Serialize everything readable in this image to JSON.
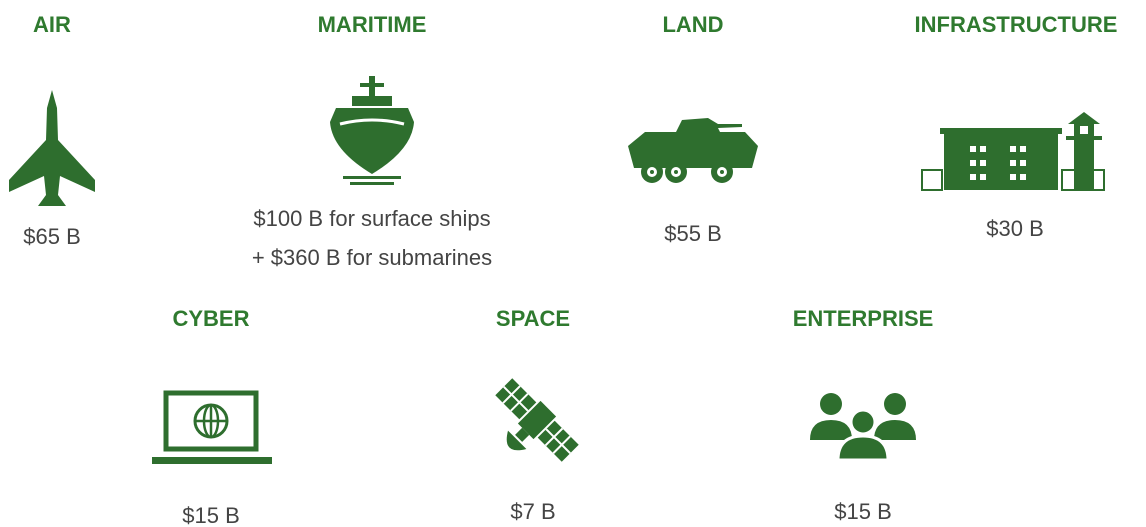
{
  "items": [
    {
      "title": "AIR",
      "amount": [
        "$65 B"
      ]
    },
    {
      "title": "MARITIME",
      "amount": [
        "$100 B for surface ships",
        "+ $360 B for submarines"
      ]
    },
    {
      "title": "LAND",
      "amount": [
        "$55 B"
      ]
    },
    {
      "title": "INFRASTRUCTURE",
      "amount": [
        "$30 B"
      ]
    },
    {
      "title": "CYBER",
      "amount": [
        "$15 B"
      ]
    },
    {
      "title": "SPACE",
      "amount": [
        "$7 B"
      ]
    },
    {
      "title": "ENTERPRISE",
      "amount": [
        "$15 B"
      ]
    }
  ]
}
